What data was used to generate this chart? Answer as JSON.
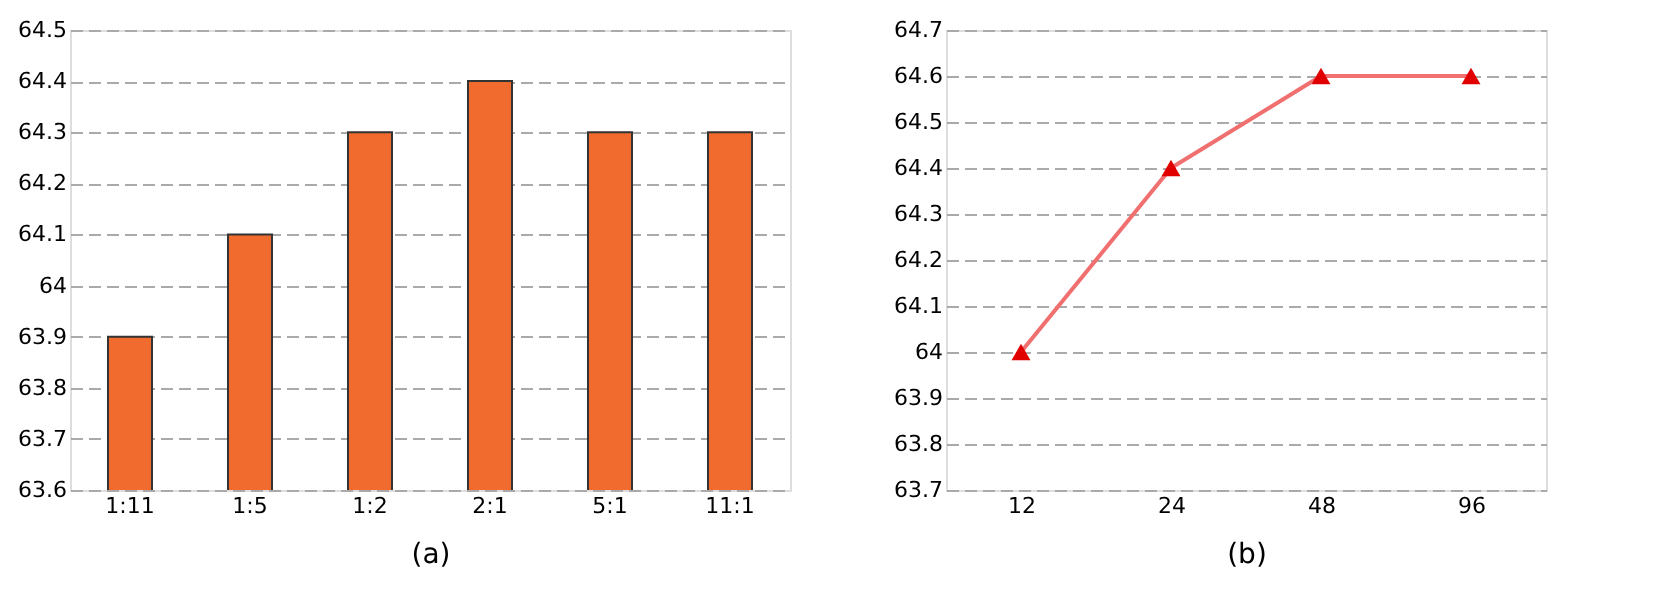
{
  "chart_data": [
    {
      "type": "bar",
      "xlabel": "(a)",
      "categories": [
        "1:11",
        "1:5",
        "1:2",
        "2:1",
        "5:1",
        "11:1"
      ],
      "values": [
        63.9,
        64.1,
        64.3,
        64.4,
        64.3,
        64.3
      ],
      "color": "#f26b2e",
      "ylim": [
        63.6,
        64.5
      ],
      "yticks": [
        63.6,
        63.7,
        63.8,
        63.9,
        64,
        64.1,
        64.2,
        64.3,
        64.4,
        64.5
      ],
      "grid": "y"
    },
    {
      "type": "line",
      "xlabel": "(b)",
      "categories": [
        "12",
        "24",
        "48",
        "96"
      ],
      "series": [
        {
          "color": "#f07070",
          "values": [
            64,
            64.4,
            64.6,
            64.6
          ]
        }
      ],
      "marker": "triangle",
      "line_style": "solid",
      "ylim": [
        63.7,
        64.7
      ],
      "yticks": [
        63.7,
        63.8,
        63.9,
        64,
        64.1,
        64.2,
        64.3,
        64.4,
        64.5,
        64.6,
        64.7
      ],
      "grid": "y"
    }
  ]
}
